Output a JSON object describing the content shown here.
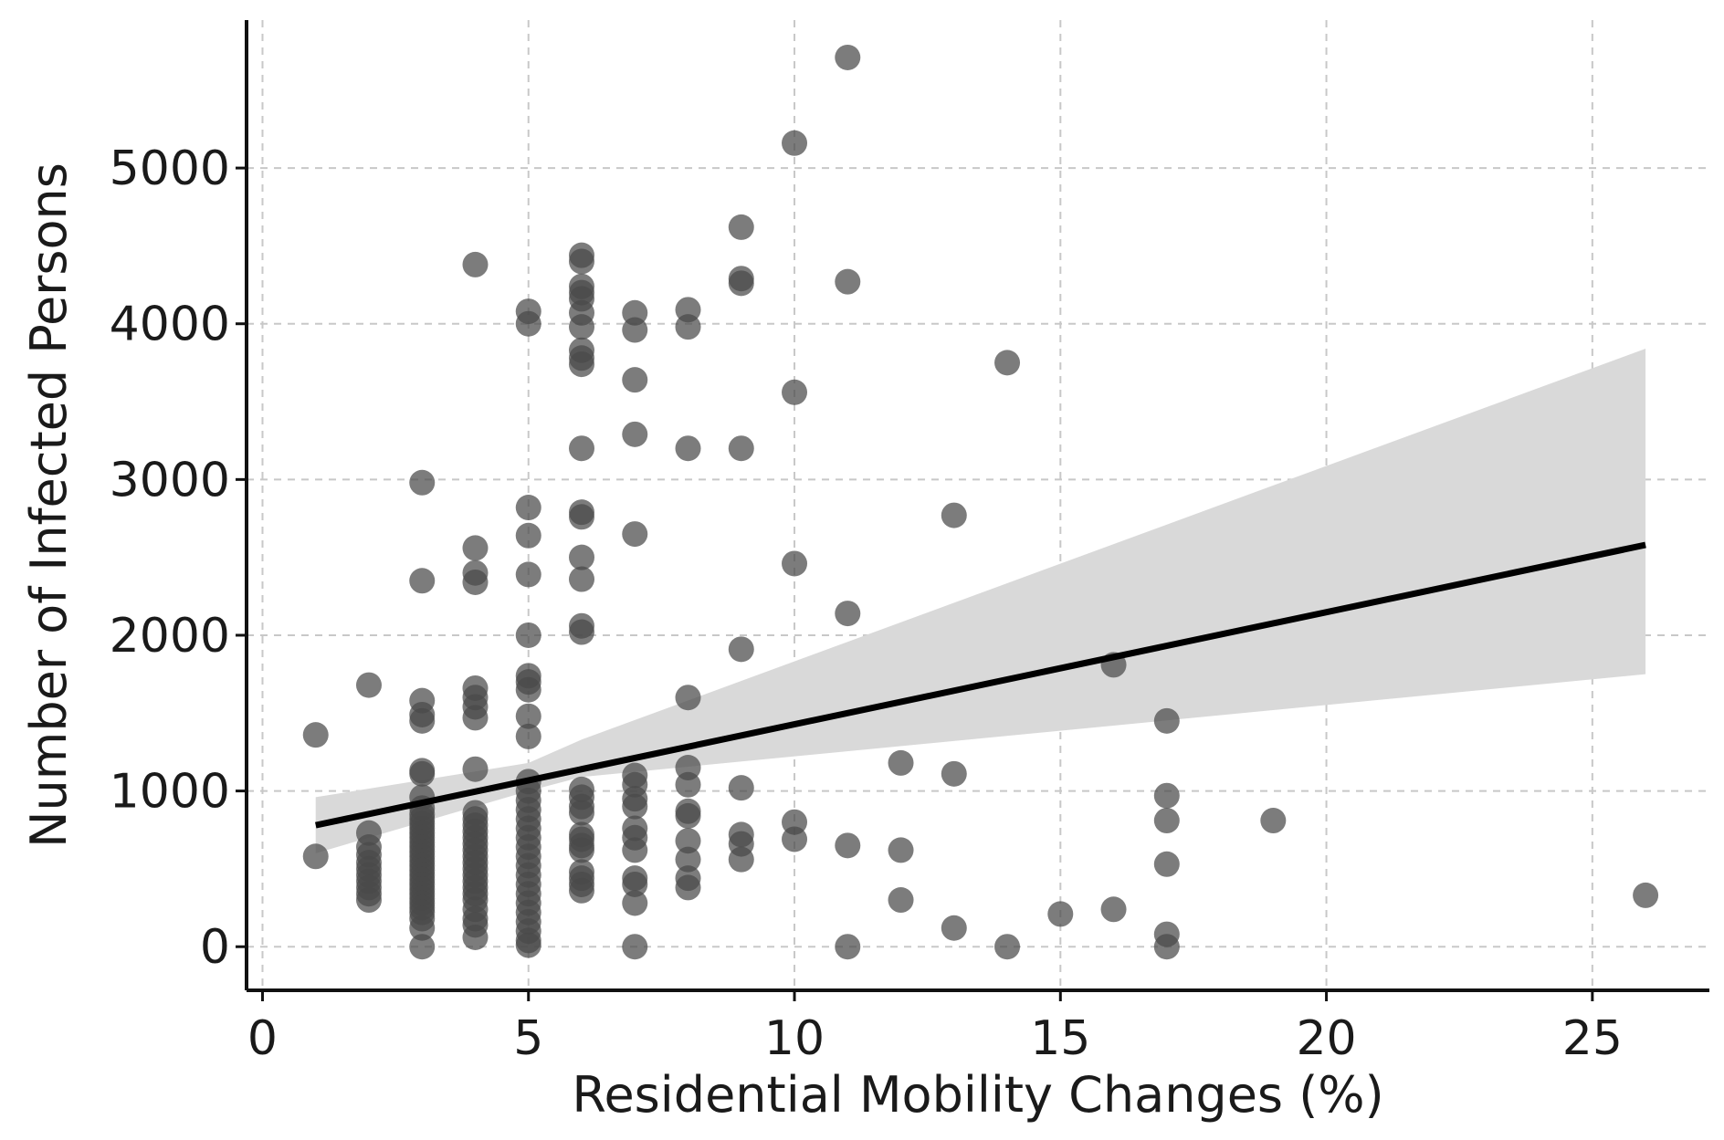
{
  "chart_data": {
    "type": "scatter",
    "title": "",
    "xlabel": "Residential Mobility Changes (%)",
    "ylabel": "Number of Infected Persons",
    "xlim": [
      -0.3,
      27.2
    ],
    "ylim": [
      -280,
      5950
    ],
    "xticks": [
      0,
      5,
      10,
      15,
      20,
      25
    ],
    "yticks": [
      0,
      1000,
      2000,
      3000,
      4000,
      5000
    ],
    "grid": true,
    "colors": {
      "points": "#4a4a4a",
      "fit_line": "#000000",
      "confidence_band": "#d9d9d9",
      "axes": "#111111",
      "grid": "#c8c8c8"
    },
    "points": [
      [
        1,
        1360
      ],
      [
        1,
        580
      ],
      [
        2,
        1680
      ],
      [
        2,
        730
      ],
      [
        2,
        640
      ],
      [
        2,
        590
      ],
      [
        2,
        540
      ],
      [
        2,
        500
      ],
      [
        2,
        460
      ],
      [
        2,
        420
      ],
      [
        2,
        380
      ],
      [
        2,
        340
      ],
      [
        2,
        300
      ],
      [
        3,
        2980
      ],
      [
        3,
        2350
      ],
      [
        3,
        1580
      ],
      [
        3,
        1490
      ],
      [
        3,
        1450
      ],
      [
        3,
        1130
      ],
      [
        3,
        1110
      ],
      [
        3,
        960
      ],
      [
        3,
        890
      ],
      [
        3,
        850
      ],
      [
        3,
        820
      ],
      [
        3,
        790
      ],
      [
        3,
        760
      ],
      [
        3,
        730
      ],
      [
        3,
        700
      ],
      [
        3,
        670
      ],
      [
        3,
        640
      ],
      [
        3,
        610
      ],
      [
        3,
        580
      ],
      [
        3,
        550
      ],
      [
        3,
        520
      ],
      [
        3,
        490
      ],
      [
        3,
        460
      ],
      [
        3,
        430
      ],
      [
        3,
        400
      ],
      [
        3,
        370
      ],
      [
        3,
        340
      ],
      [
        3,
        310
      ],
      [
        3,
        280
      ],
      [
        3,
        250
      ],
      [
        3,
        220
      ],
      [
        3,
        180
      ],
      [
        3,
        120
      ],
      [
        3,
        0
      ],
      [
        4,
        4380
      ],
      [
        4,
        2560
      ],
      [
        4,
        2400
      ],
      [
        4,
        2340
      ],
      [
        4,
        1660
      ],
      [
        4,
        1600
      ],
      [
        4,
        1540
      ],
      [
        4,
        1470
      ],
      [
        4,
        1140
      ],
      [
        4,
        860
      ],
      [
        4,
        820
      ],
      [
        4,
        780
      ],
      [
        4,
        740
      ],
      [
        4,
        700
      ],
      [
        4,
        660
      ],
      [
        4,
        620
      ],
      [
        4,
        580
      ],
      [
        4,
        540
      ],
      [
        4,
        500
      ],
      [
        4,
        460
      ],
      [
        4,
        420
      ],
      [
        4,
        380
      ],
      [
        4,
        340
      ],
      [
        4,
        300
      ],
      [
        4,
        240
      ],
      [
        4,
        180
      ],
      [
        4,
        140
      ],
      [
        4,
        60
      ],
      [
        5,
        4080
      ],
      [
        5,
        4000
      ],
      [
        5,
        2820
      ],
      [
        5,
        2640
      ],
      [
        5,
        2390
      ],
      [
        5,
        2000
      ],
      [
        5,
        1740
      ],
      [
        5,
        1700
      ],
      [
        5,
        1650
      ],
      [
        5,
        1480
      ],
      [
        5,
        1350
      ],
      [
        5,
        1060
      ],
      [
        5,
        1000
      ],
      [
        5,
        940
      ],
      [
        5,
        880
      ],
      [
        5,
        820
      ],
      [
        5,
        760
      ],
      [
        5,
        700
      ],
      [
        5,
        640
      ],
      [
        5,
        580
      ],
      [
        5,
        520
      ],
      [
        5,
        460
      ],
      [
        5,
        400
      ],
      [
        5,
        340
      ],
      [
        5,
        280
      ],
      [
        5,
        220
      ],
      [
        5,
        160
      ],
      [
        5,
        100
      ],
      [
        5,
        40
      ],
      [
        5,
        10
      ],
      [
        6,
        4440
      ],
      [
        6,
        4400
      ],
      [
        6,
        4240
      ],
      [
        6,
        4200
      ],
      [
        6,
        4160
      ],
      [
        6,
        4070
      ],
      [
        6,
        3980
      ],
      [
        6,
        3830
      ],
      [
        6,
        3780
      ],
      [
        6,
        3740
      ],
      [
        6,
        3200
      ],
      [
        6,
        2790
      ],
      [
        6,
        2760
      ],
      [
        6,
        2500
      ],
      [
        6,
        2360
      ],
      [
        6,
        2060
      ],
      [
        6,
        2020
      ],
      [
        6,
        1010
      ],
      [
        6,
        960
      ],
      [
        6,
        900
      ],
      [
        6,
        860
      ],
      [
        6,
        720
      ],
      [
        6,
        690
      ],
      [
        6,
        650
      ],
      [
        6,
        620
      ],
      [
        6,
        480
      ],
      [
        6,
        440
      ],
      [
        6,
        400
      ],
      [
        6,
        360
      ],
      [
        7,
        4070
      ],
      [
        7,
        3960
      ],
      [
        7,
        3640
      ],
      [
        7,
        3290
      ],
      [
        7,
        2650
      ],
      [
        7,
        1100
      ],
      [
        7,
        1040
      ],
      [
        7,
        950
      ],
      [
        7,
        900
      ],
      [
        7,
        760
      ],
      [
        7,
        700
      ],
      [
        7,
        620
      ],
      [
        7,
        440
      ],
      [
        7,
        400
      ],
      [
        7,
        280
      ],
      [
        7,
        0
      ],
      [
        8,
        4090
      ],
      [
        8,
        3980
      ],
      [
        8,
        3200
      ],
      [
        8,
        1600
      ],
      [
        8,
        1150
      ],
      [
        8,
        1040
      ],
      [
        8,
        870
      ],
      [
        8,
        840
      ],
      [
        8,
        680
      ],
      [
        8,
        560
      ],
      [
        8,
        440
      ],
      [
        8,
        380
      ],
      [
        9,
        4620
      ],
      [
        9,
        4290
      ],
      [
        9,
        4260
      ],
      [
        9,
        3200
      ],
      [
        9,
        1910
      ],
      [
        9,
        1020
      ],
      [
        9,
        720
      ],
      [
        9,
        660
      ],
      [
        9,
        560
      ],
      [
        10,
        5160
      ],
      [
        10,
        3560
      ],
      [
        10,
        2460
      ],
      [
        10,
        800
      ],
      [
        10,
        690
      ],
      [
        11,
        5710
      ],
      [
        11,
        4270
      ],
      [
        11,
        2140
      ],
      [
        11,
        650
      ],
      [
        11,
        0
      ],
      [
        12,
        1180
      ],
      [
        12,
        620
      ],
      [
        12,
        300
      ],
      [
        13,
        2770
      ],
      [
        13,
        1110
      ],
      [
        13,
        120
      ],
      [
        14,
        3750
      ],
      [
        14,
        0
      ],
      [
        15,
        210
      ],
      [
        16,
        1810
      ],
      [
        16,
        240
      ],
      [
        17,
        1450
      ],
      [
        17,
        970
      ],
      [
        17,
        810
      ],
      [
        17,
        530
      ],
      [
        17,
        80
      ],
      [
        17,
        0
      ],
      [
        19,
        810
      ],
      [
        26,
        330
      ]
    ],
    "regression": {
      "x_range": [
        1,
        26
      ],
      "line": [
        [
          1,
          780
        ],
        [
          26,
          2580
        ]
      ],
      "confidence_band": {
        "x": [
          1,
          5,
          6,
          26
        ],
        "upper": [
          960,
          1180,
          1330,
          3840
        ],
        "lower": [
          600,
          1000,
          1090,
          1750
        ]
      }
    }
  }
}
